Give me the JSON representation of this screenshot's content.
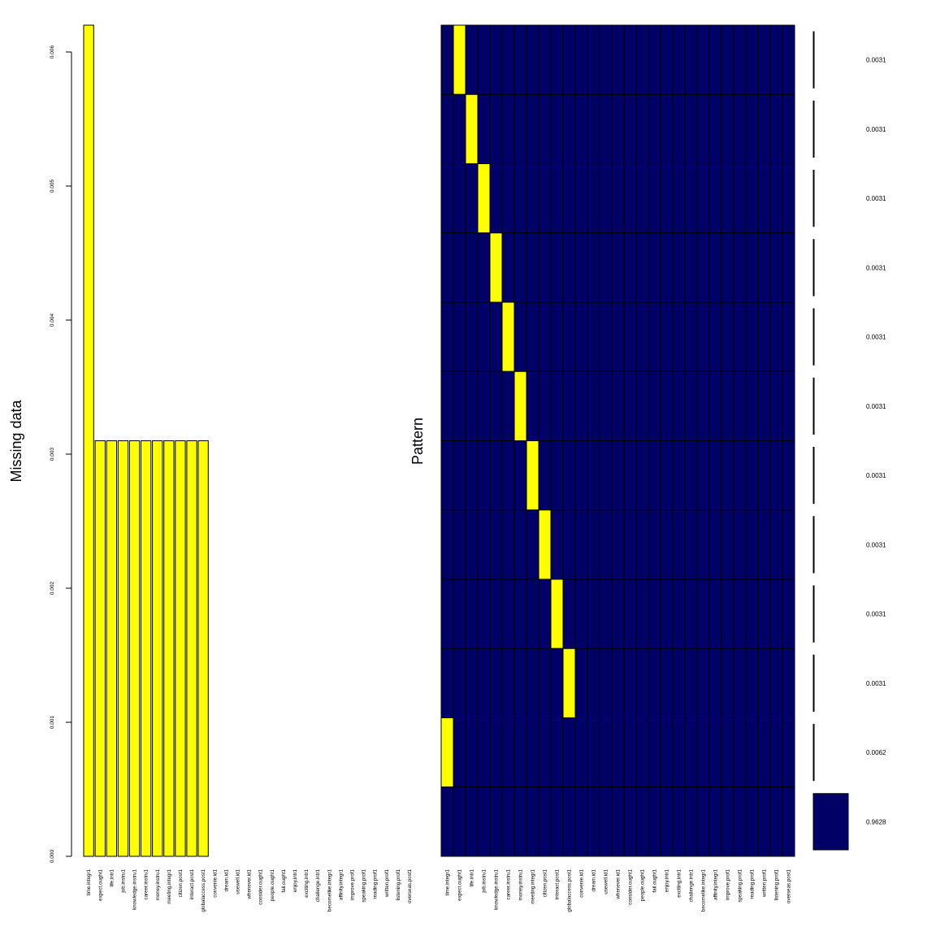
{
  "colors": {
    "missing": "#ffff00",
    "observed": "#000066",
    "stroke": "#000000"
  },
  "chart_data": [
    {
      "type": "bar",
      "ylabel": "Missing data",
      "xlabel": "",
      "title": "",
      "ylim": [
        0,
        0.0062
      ],
      "yticks": [
        "0.000",
        "0.001",
        "0.002",
        "0.003",
        "0.004",
        "0.005",
        "0.006"
      ],
      "categories": [
        "time.integr1",
        "expect.ought1",
        "life.intr1",
        "job.instru1",
        "knowledge.instru1",
        "career.instru1",
        "money.instru1",
        "meeting.integr1",
        "citizen.post1",
        "interact.post1",
        "globalaccess.post1",
        "convenie.id1",
        "dream.id1",
        "usewell.id1",
        "whenever.id1",
        "consider.ought1",
        "people.ought1",
        "fail.ought1",
        "enjoy.intr1",
        "exciting.intr1",
        "challenge.intr1",
        "becomelike.integr1",
        "affinity.integr1",
        "improve.prof1",
        "speaking.prof1",
        "reading.prof1",
        "written.prof1",
        "listening.prof1",
        "overseas.post1"
      ],
      "values": [
        0.0062,
        0.0031,
        0.0031,
        0.0031,
        0.0031,
        0.0031,
        0.0031,
        0.0031,
        0.0031,
        0.0031,
        0.0031,
        0,
        0,
        0,
        0,
        0,
        0,
        0,
        0,
        0,
        0,
        0,
        0,
        0,
        0,
        0,
        0,
        0,
        0
      ]
    },
    {
      "type": "heatmap",
      "ylabel": "Pattern",
      "columns": [
        "time.integr1",
        "expect.ought1",
        "life.intr1",
        "job.instru1",
        "knowledge.instru1",
        "career.instru1",
        "money.instru1",
        "meeting.integr1",
        "citizen.post1",
        "interact.post1",
        "globalaccess.post1",
        "convenie.id1",
        "dream.id1",
        "usewell.id1",
        "whenever.id1",
        "consider.ought1",
        "people.ought1",
        "fail.ought1",
        "enjoy.intr1",
        "exciting.intr1",
        "challenge.intr1",
        "becomelike.integr1",
        "affinity.integr1",
        "improve.prof1",
        "speaking.prof1",
        "reading.prof1",
        "written.prof1",
        "listening.prof1",
        "overseas.post1"
      ],
      "patterns": [
        {
          "missing_column": 1,
          "proportion": 0.0031,
          "label": "0.0031"
        },
        {
          "missing_column": 2,
          "proportion": 0.0031,
          "label": "0.0031"
        },
        {
          "missing_column": 3,
          "proportion": 0.0031,
          "label": "0.0031"
        },
        {
          "missing_column": 4,
          "proportion": 0.0031,
          "label": "0.0031"
        },
        {
          "missing_column": 5,
          "proportion": 0.0031,
          "label": "0.0031"
        },
        {
          "missing_column": 6,
          "proportion": 0.0031,
          "label": "0.0031"
        },
        {
          "missing_column": 7,
          "proportion": 0.0031,
          "label": "0.0031"
        },
        {
          "missing_column": 8,
          "proportion": 0.0031,
          "label": "0.0031"
        },
        {
          "missing_column": 9,
          "proportion": 0.0031,
          "label": "0.0031"
        },
        {
          "missing_column": 10,
          "proportion": 0.0031,
          "label": "0.0031"
        },
        {
          "missing_column": 0,
          "proportion": 0.0062,
          "label": "0.0062"
        },
        {
          "missing_column": -1,
          "proportion": 0.9628,
          "label": "0.9628"
        }
      ]
    }
  ]
}
